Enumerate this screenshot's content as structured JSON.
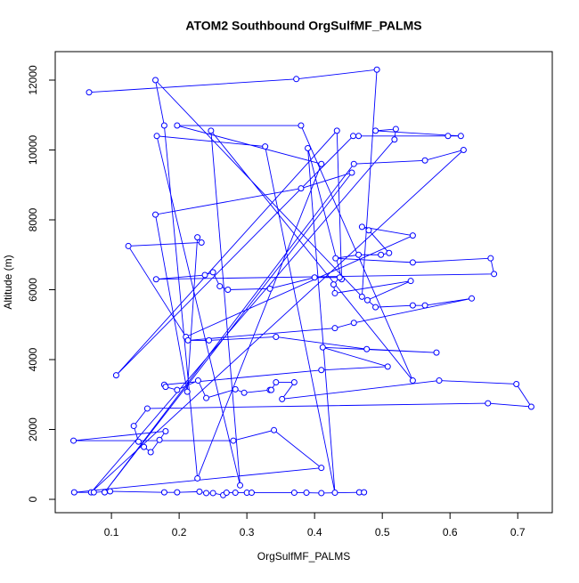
{
  "chart_data": {
    "type": "line",
    "title": "ATOM2 Southbound OrgSulfMF_PALMS",
    "x_label": "OrgSulfMF_PALMS",
    "y_label": "Altitude (m)",
    "color": "#0000ff",
    "markers": true,
    "xlim": [
      0.017,
      0.751
    ],
    "ylim": [
      -382,
      12815
    ],
    "xticks": [
      0.1,
      0.2,
      0.3,
      0.4,
      0.5,
      0.6,
      0.7
    ],
    "yticks": [
      0,
      2000,
      4000,
      6000,
      8000,
      10000,
      12000
    ],
    "x": [
      0.067,
      0.373,
      0.492,
      0.47,
      0.165,
      0.178,
      0.227,
      0.41,
      0.197,
      0.38,
      0.545,
      0.247,
      0.29,
      0.167,
      0.327,
      0.43,
      0.39,
      0.44,
      0.433,
      0.107,
      0.457,
      0.465,
      0.597,
      0.616,
      0.49,
      0.52,
      0.518,
      0.07,
      0.62,
      0.563,
      0.458,
      0.09,
      0.455,
      0.38,
      0.165,
      0.212,
      0.227,
      0.233,
      0.125,
      0.21,
      0.545,
      0.47,
      0.48,
      0.51,
      0.498,
      0.465,
      0.431,
      0.545,
      0.66,
      0.665,
      0.166,
      0.238,
      0.25,
      0.26,
      0.272,
      0.334,
      0.4,
      0.437,
      0.428,
      0.43,
      0.542,
      0.478,
      0.49,
      0.545,
      0.563,
      0.632,
      0.458,
      0.43,
      0.213,
      0.244,
      0.343,
      0.477,
      0.58,
      0.412,
      0.508,
      0.41,
      0.178,
      0.18,
      0.197,
      0.228,
      0.24,
      0.283,
      0.296,
      0.334,
      0.336,
      0.343,
      0.37,
      0.352,
      0.584,
      0.698,
      0.72,
      0.656,
      0.153,
      0.133,
      0.14,
      0.148,
      0.158,
      0.171,
      0.18,
      0.044,
      0.28,
      0.34,
      0.41,
      0.045,
      0.074,
      0.098,
      0.178,
      0.197,
      0.23,
      0.24,
      0.25,
      0.265,
      0.27,
      0.283,
      0.3,
      0.307,
      0.37,
      0.388,
      0.41,
      0.466,
      0.473
    ],
    "values": [
      11650,
      12030,
      12300,
      5800,
      12000,
      10700,
      600,
      9600,
      10700,
      10700,
      3400,
      10550,
      400,
      10400,
      10100,
      190,
      10050,
      6300,
      10550,
      3550,
      10400,
      10400,
      10400,
      10400,
      10550,
      10600,
      10300,
      200,
      10000,
      9700,
      9600,
      200,
      9350,
      8900,
      8150,
      3080,
      7500,
      7350,
      7250,
      4650,
      7550,
      7800,
      7700,
      7050,
      7000,
      7000,
      6900,
      6780,
      6900,
      6450,
      6300,
      6420,
      6500,
      6100,
      6000,
      6030,
      6350,
      6350,
      6150,
      5900,
      6250,
      5700,
      5500,
      5550,
      5550,
      5750,
      5050,
      4900,
      4550,
      4550,
      4650,
      4300,
      4200,
      4350,
      3800,
      3700,
      3280,
      3220,
      3130,
      3400,
      2900,
      3150,
      3050,
      3130,
      3130,
      3350,
      3350,
      2870,
      3400,
      3300,
      2650,
      2750,
      2600,
      2100,
      1650,
      1500,
      1350,
      1700,
      1950,
      1680,
      1680,
      1980,
      900,
      200,
      200,
      230,
      200,
      200,
      220,
      180,
      180,
      120,
      190,
      190,
      190,
      190,
      190,
      190,
      180,
      200,
      200
    ]
  }
}
